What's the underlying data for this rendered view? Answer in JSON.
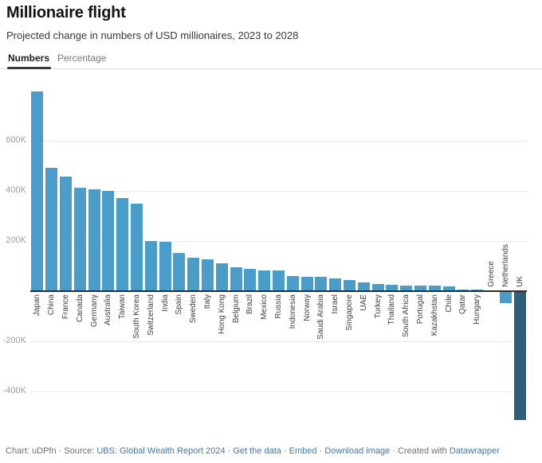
{
  "header": {
    "title": "Millionaire flight",
    "subtitle": "Projected change in numbers of USD millionaires, 2023 to 2028"
  },
  "tabs": [
    {
      "label": "Numbers",
      "active": true
    },
    {
      "label": "Percentage",
      "active": false
    }
  ],
  "chart_data": {
    "type": "bar",
    "title": "Millionaire flight",
    "subtitle": "Projected change in numbers of USD millionaires, 2023 to 2028",
    "categories": [
      "Japan",
      "China",
      "France",
      "Canada",
      "Germany",
      "Australia",
      "Taiwan",
      "South Korea",
      "Switzerland",
      "India",
      "Spain",
      "Sweden",
      "Italy",
      "Hong Kong",
      "Belgium",
      "Brazil",
      "Mexico",
      "Russia",
      "Indonesia",
      "Norway",
      "Saudi Arabia",
      "Israel",
      "Singapore",
      "UAE",
      "Turkey",
      "Thailand",
      "South Africa",
      "Portugal",
      "Kazakhstan",
      "Chile",
      "Qatar",
      "Hungary",
      "Greece",
      "Netherlands",
      "UK"
    ],
    "values": [
      795000,
      490000,
      455000,
      410000,
      405000,
      398000,
      370000,
      348000,
      200000,
      195000,
      150000,
      131000,
      125000,
      110000,
      93000,
      87000,
      81000,
      80000,
      59000,
      56000,
      55000,
      48000,
      43000,
      32000,
      27000,
      25000,
      22000,
      21000,
      20000,
      17000,
      6000,
      4000,
      -2000,
      -48000,
      -515000
    ],
    "xlabel": "",
    "ylabel": "",
    "ylim": [
      -540000,
      820000
    ],
    "yticks": [
      {
        "label": "600K",
        "value": 600000
      },
      {
        "label": "400K",
        "value": 400000
      },
      {
        "label": "200K",
        "value": 200000
      },
      {
        "label": "-200K",
        "value": -200000
      },
      {
        "label": "-400K",
        "value": -400000
      }
    ],
    "grid": true,
    "legend": false,
    "bar_color": "#4b9dc9",
    "highlight": {
      "category": "UK",
      "color": "#2d5f7d"
    }
  },
  "footer": {
    "segments": [
      {
        "text": "Chart: uDPfn",
        "link": false
      },
      {
        "text": " · Source: ",
        "link": false
      },
      {
        "text": "UBS: Global Wealth Report 2024",
        "link": true
      },
      {
        "text": " · ",
        "link": false
      },
      {
        "text": "Get the data",
        "link": true
      },
      {
        "text": " · ",
        "link": false
      },
      {
        "text": "Embed",
        "link": true
      },
      {
        "text": " · ",
        "link": false
      },
      {
        "text": "Download image",
        "link": true
      },
      {
        "text": " · Created with ",
        "link": false
      },
      {
        "text": "Datawrapper",
        "link": true
      }
    ]
  }
}
